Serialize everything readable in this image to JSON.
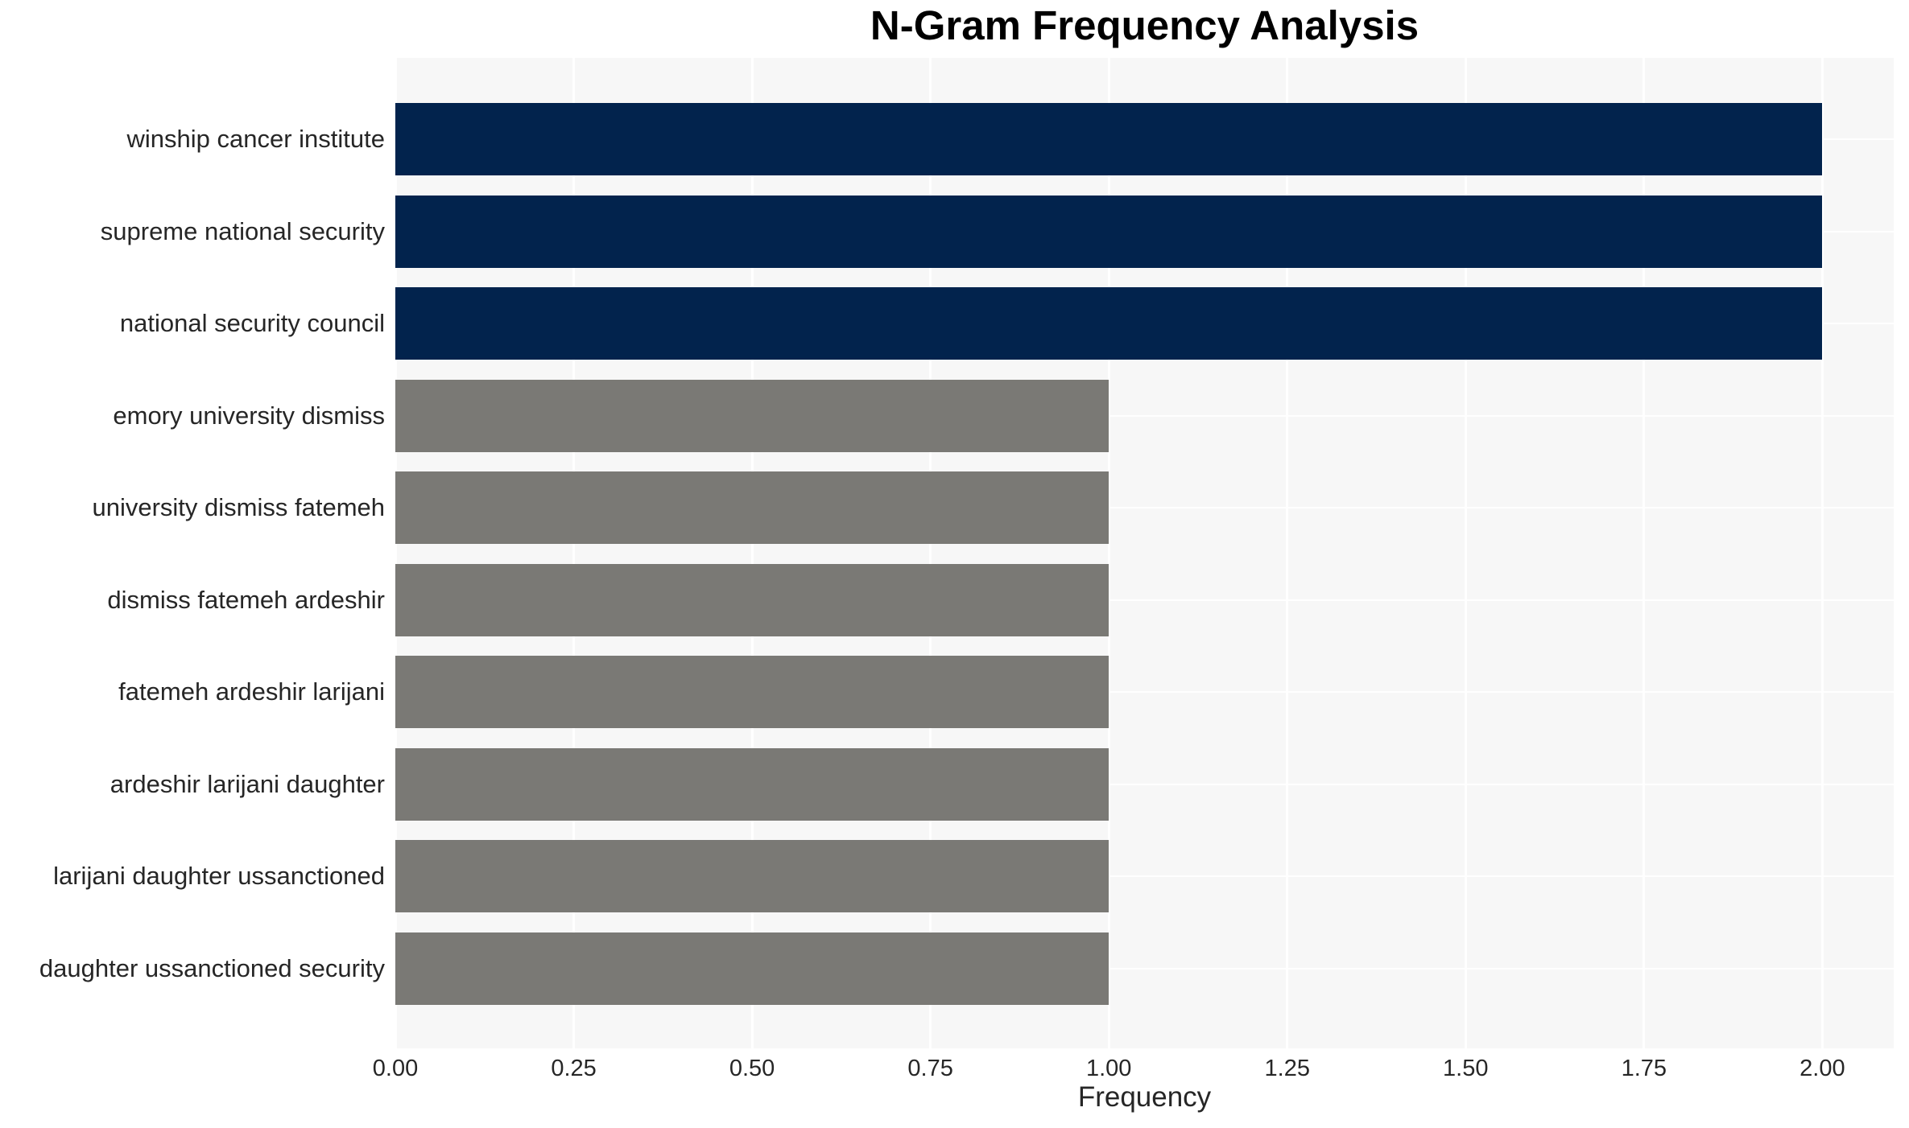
{
  "chart_data": {
    "type": "bar",
    "orientation": "horizontal",
    "title": "N-Gram Frequency Analysis",
    "xlabel": "Frequency",
    "ylabel": "",
    "categories": [
      "winship cancer institute",
      "supreme national security",
      "national security council",
      "emory university dismiss",
      "university dismiss fatemeh",
      "dismiss fatemeh ardeshir",
      "fatemeh ardeshir larijani",
      "ardeshir larijani daughter",
      "larijani daughter ussanctioned",
      "daughter ussanctioned security"
    ],
    "values": [
      2,
      2,
      2,
      1,
      1,
      1,
      1,
      1,
      1,
      1
    ],
    "bar_colors": [
      "#02234d",
      "#02234d",
      "#02234d",
      "#7a7975",
      "#7a7975",
      "#7a7975",
      "#7a7975",
      "#7a7975",
      "#7a7975",
      "#7a7975"
    ],
    "xlim": [
      0,
      2.1
    ],
    "xticks": [
      "0.00",
      "0.25",
      "0.50",
      "0.75",
      "1.00",
      "1.25",
      "1.50",
      "1.75",
      "2.00"
    ],
    "legend_position": "none",
    "grid": "on",
    "colors": {
      "high_frequency_bar": "#02234d",
      "low_frequency_bar": "#7a7975",
      "panel_background": "#f7f7f7",
      "gridline": "#ffffff",
      "tick_text": "#262626",
      "title_text": "#000000"
    }
  }
}
